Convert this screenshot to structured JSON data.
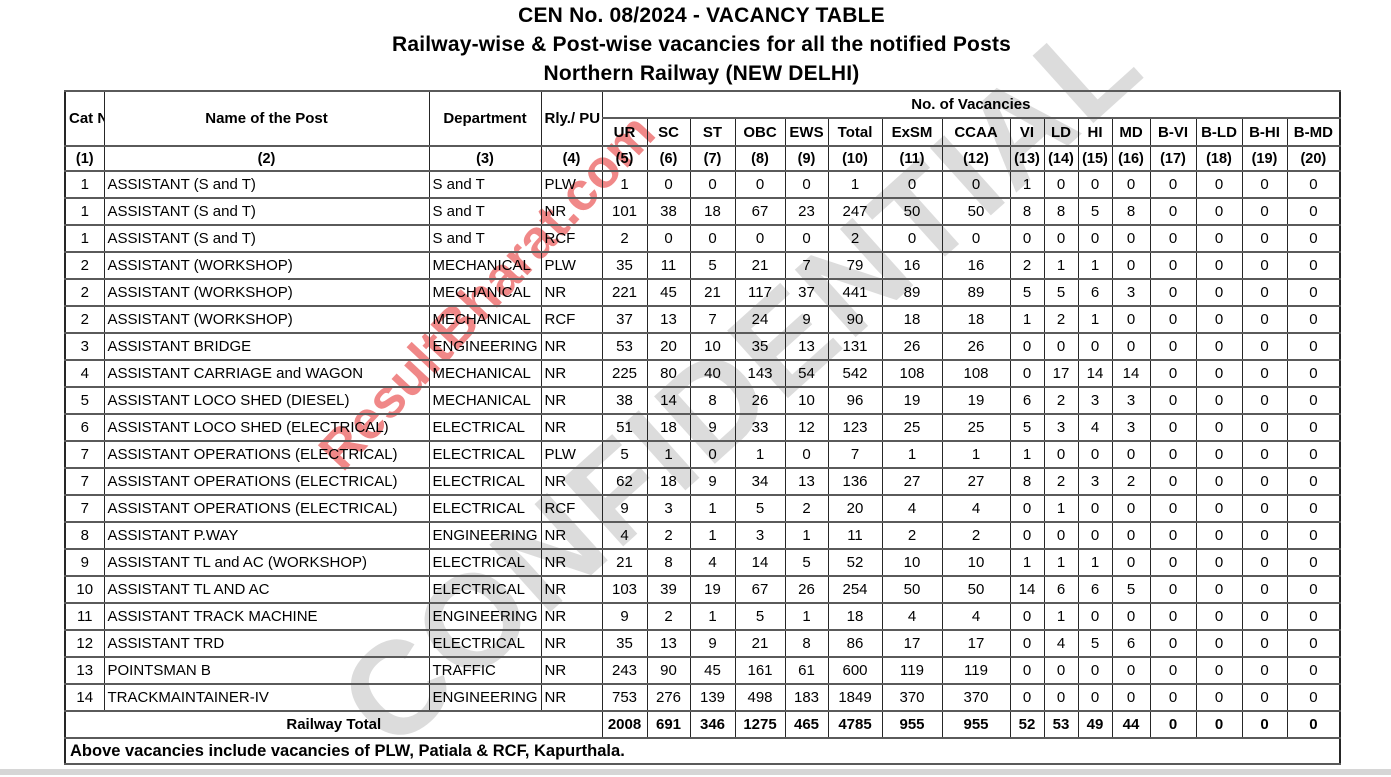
{
  "title": {
    "line1": "CEN No. 08/2024 - VACANCY TABLE",
    "line2": "Railway-wise & Post-wise vacancies for all the notified Posts",
    "line3": "Northern Railway (NEW DELHI)"
  },
  "watermark": {
    "confidential_text": "CONFIDENTIAL",
    "site_text": "ResultBharat.com",
    "gray_color": "#c6c6c6",
    "red_color": "#ec6767"
  },
  "table": {
    "headers": {
      "cat_no": "Cat\nNo",
      "name": "Name of the Post",
      "department": "Department",
      "rly_pu": "Rly./\nPU",
      "vacancies_group": "No. of Vacancies"
    },
    "vacancy_columns": [
      "UR",
      "SC",
      "ST",
      "OBC",
      "EWS",
      "Total",
      "ExSM",
      "CCAA",
      "VI",
      "LD",
      "HI",
      "MD",
      "B-VI",
      "B-LD",
      "B-HI",
      "B-MD"
    ],
    "col_numbers": [
      "(1)",
      "(2)",
      "(3)",
      "(4)",
      "(5)",
      "(6)",
      "(7)",
      "(8)",
      "(9)",
      "(10)",
      "(11)",
      "(12)",
      "(13)",
      "(14)",
      "(15)",
      "(16)",
      "(17)",
      "(18)",
      "(19)",
      "(20)"
    ],
    "rows": [
      {
        "cat": "1",
        "name": "ASSISTANT (S and T)",
        "dept": "S and T",
        "rly": "PLW",
        "values": [
          1,
          0,
          0,
          0,
          0,
          1,
          0,
          0,
          1,
          0,
          0,
          0,
          0,
          0,
          0,
          0
        ]
      },
      {
        "cat": "1",
        "name": "ASSISTANT (S and T)",
        "dept": "S and T",
        "rly": "NR",
        "values": [
          101,
          38,
          18,
          67,
          23,
          247,
          50,
          50,
          8,
          8,
          5,
          8,
          0,
          0,
          0,
          0
        ]
      },
      {
        "cat": "1",
        "name": "ASSISTANT (S and T)",
        "dept": "S and T",
        "rly": "RCF",
        "values": [
          2,
          0,
          0,
          0,
          0,
          2,
          0,
          0,
          0,
          0,
          0,
          0,
          0,
          0,
          0,
          0
        ]
      },
      {
        "cat": "2",
        "name": "ASSISTANT (WORKSHOP)",
        "dept": "MECHANICAL",
        "rly": "PLW",
        "values": [
          35,
          11,
          5,
          21,
          7,
          79,
          16,
          16,
          2,
          1,
          1,
          0,
          0,
          0,
          0,
          0
        ]
      },
      {
        "cat": "2",
        "name": "ASSISTANT (WORKSHOP)",
        "dept": "MECHANICAL",
        "rly": "NR",
        "values": [
          221,
          45,
          21,
          117,
          37,
          441,
          89,
          89,
          5,
          5,
          6,
          3,
          0,
          0,
          0,
          0
        ]
      },
      {
        "cat": "2",
        "name": "ASSISTANT (WORKSHOP)",
        "dept": "MECHANICAL",
        "rly": "RCF",
        "values": [
          37,
          13,
          7,
          24,
          9,
          90,
          18,
          18,
          1,
          2,
          1,
          0,
          0,
          0,
          0,
          0
        ]
      },
      {
        "cat": "3",
        "name": "ASSISTANT BRIDGE",
        "dept": "ENGINEERING",
        "rly": "NR",
        "values": [
          53,
          20,
          10,
          35,
          13,
          131,
          26,
          26,
          0,
          0,
          0,
          0,
          0,
          0,
          0,
          0
        ]
      },
      {
        "cat": "4",
        "name": "ASSISTANT CARRIAGE and WAGON",
        "dept": "MECHANICAL",
        "rly": "NR",
        "values": [
          225,
          80,
          40,
          143,
          54,
          542,
          108,
          108,
          0,
          17,
          14,
          14,
          0,
          0,
          0,
          0
        ]
      },
      {
        "cat": "5",
        "name": "ASSISTANT LOCO SHED (DIESEL)",
        "dept": "MECHANICAL",
        "rly": "NR",
        "values": [
          38,
          14,
          8,
          26,
          10,
          96,
          19,
          19,
          6,
          2,
          3,
          3,
          0,
          0,
          0,
          0
        ]
      },
      {
        "cat": "6",
        "name": "ASSISTANT LOCO SHED (ELECTRICAL)",
        "dept": "ELECTRICAL",
        "rly": "NR",
        "values": [
          51,
          18,
          9,
          33,
          12,
          123,
          25,
          25,
          5,
          3,
          4,
          3,
          0,
          0,
          0,
          0
        ]
      },
      {
        "cat": "7",
        "name": "ASSISTANT OPERATIONS (ELECTRICAL)",
        "dept": "ELECTRICAL",
        "rly": "PLW",
        "values": [
          5,
          1,
          0,
          1,
          0,
          7,
          1,
          1,
          1,
          0,
          0,
          0,
          0,
          0,
          0,
          0
        ]
      },
      {
        "cat": "7",
        "name": "ASSISTANT OPERATIONS (ELECTRICAL)",
        "dept": "ELECTRICAL",
        "rly": "NR",
        "values": [
          62,
          18,
          9,
          34,
          13,
          136,
          27,
          27,
          8,
          2,
          3,
          2,
          0,
          0,
          0,
          0
        ]
      },
      {
        "cat": "7",
        "name": "ASSISTANT OPERATIONS (ELECTRICAL)",
        "dept": "ELECTRICAL",
        "rly": "RCF",
        "values": [
          9,
          3,
          1,
          5,
          2,
          20,
          4,
          4,
          0,
          1,
          0,
          0,
          0,
          0,
          0,
          0
        ]
      },
      {
        "cat": "8",
        "name": "ASSISTANT P.WAY",
        "dept": "ENGINEERING",
        "rly": "NR",
        "values": [
          4,
          2,
          1,
          3,
          1,
          11,
          2,
          2,
          0,
          0,
          0,
          0,
          0,
          0,
          0,
          0
        ]
      },
      {
        "cat": "9",
        "name": "ASSISTANT TL and AC (WORKSHOP)",
        "dept": "ELECTRICAL",
        "rly": "NR",
        "values": [
          21,
          8,
          4,
          14,
          5,
          52,
          10,
          10,
          1,
          1,
          1,
          0,
          0,
          0,
          0,
          0
        ]
      },
      {
        "cat": "10",
        "name": "ASSISTANT TL AND AC",
        "dept": "ELECTRICAL",
        "rly": "NR",
        "values": [
          103,
          39,
          19,
          67,
          26,
          254,
          50,
          50,
          14,
          6,
          6,
          5,
          0,
          0,
          0,
          0
        ]
      },
      {
        "cat": "11",
        "name": "ASSISTANT TRACK MACHINE",
        "dept": "ENGINEERING",
        "rly": "NR",
        "values": [
          9,
          2,
          1,
          5,
          1,
          18,
          4,
          4,
          0,
          1,
          0,
          0,
          0,
          0,
          0,
          0
        ]
      },
      {
        "cat": "12",
        "name": "ASSISTANT TRD",
        "dept": "ELECTRICAL",
        "rly": "NR",
        "values": [
          35,
          13,
          9,
          21,
          8,
          86,
          17,
          17,
          0,
          4,
          5,
          6,
          0,
          0,
          0,
          0
        ]
      },
      {
        "cat": "13",
        "name": "POINTSMAN B",
        "dept": "TRAFFIC",
        "rly": "NR",
        "values": [
          243,
          90,
          45,
          161,
          61,
          600,
          119,
          119,
          0,
          0,
          0,
          0,
          0,
          0,
          0,
          0
        ]
      },
      {
        "cat": "14",
        "name": "TRACKMAINTAINER-IV",
        "dept": "ENGINEERING",
        "rly": "NR",
        "values": [
          753,
          276,
          139,
          498,
          183,
          1849,
          370,
          370,
          0,
          0,
          0,
          0,
          0,
          0,
          0,
          0
        ]
      }
    ],
    "total": {
      "label": "Railway Total",
      "values": [
        2008,
        691,
        346,
        1275,
        465,
        4785,
        955,
        955,
        52,
        53,
        49,
        44,
        0,
        0,
        0,
        0
      ]
    },
    "footnote": "Above vacancies include vacancies of PLW, Patiala & RCF, Kapurthala."
  }
}
